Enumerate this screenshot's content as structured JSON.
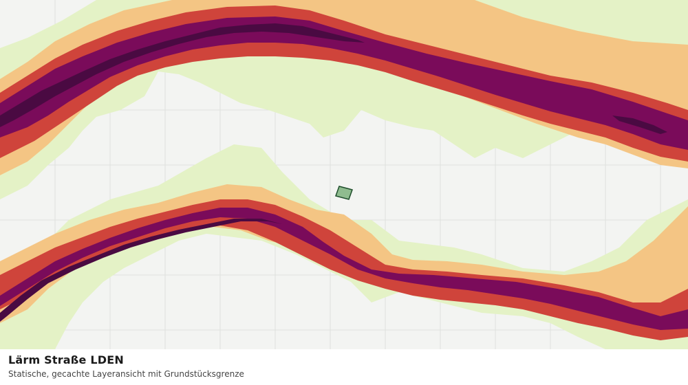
{
  "caption": {
    "title": "Lärm Straße LDEN",
    "subtitle": "Statische, gecachte Layeransicht mit Grundstücksgrenze"
  },
  "map": {
    "legend_colors": {
      "band_1": "#e4f2c6",
      "band_2": "#f4c584",
      "band_3": "#cf443b",
      "band_4": "#7a0b5a",
      "band_5": "#4a0a42"
    },
    "parcel_color": "#8fbc8f",
    "grid_color": "#dfe1de",
    "background": "#f3f4f2"
  }
}
